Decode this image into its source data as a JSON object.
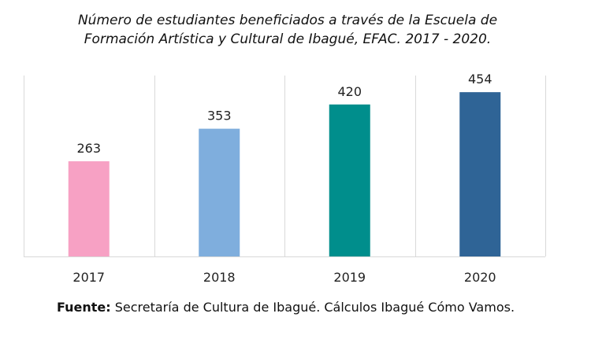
{
  "title_line1": "Número de estudiantes beneficiados a través de la Escuela de",
  "title_line2": "Formación Artística y Cultural de  Ibagué,  EFAC. 2017 - 2020.",
  "source": {
    "label": "Fuente:",
    "text": " Secretaría de Cultura de Ibagué. Cálculos Ibagué Cómo Vamos."
  },
  "chart_data": {
    "type": "bar",
    "title": "Número de estudiantes beneficiados a través de la Escuela de Formación Artística y Cultural de  Ibagué,  EFAC. 2017 - 2020.",
    "categories": [
      "2017",
      "2018",
      "2019",
      "2020"
    ],
    "values": [
      263,
      353,
      420,
      454
    ],
    "bar_colors": [
      "#F7A1C4",
      "#7FAEDD",
      "#008E8C",
      "#2F6496"
    ],
    "xlabel": "",
    "ylabel": "",
    "ylim": [
      0,
      500
    ],
    "grid": "vertical category separators",
    "legend": "none"
  }
}
